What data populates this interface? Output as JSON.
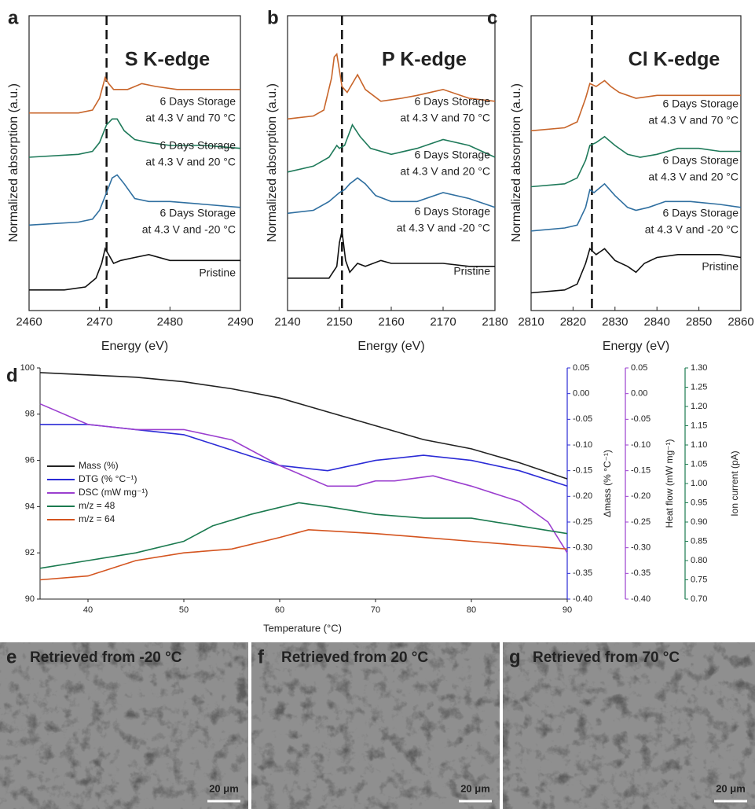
{
  "chart_data": [
    {
      "type": "xanes",
      "panel": "a",
      "title": "S K-edge",
      "xlabel": "Energy (eV)",
      "ylabel": "Normalized absorption (a.u.)",
      "xlim": [
        2460,
        2490
      ],
      "xticks": [
        2460,
        2470,
        2480,
        2490
      ],
      "ylim": [
        0,
        1
      ],
      "vline": 2471,
      "series": [
        {
          "label": [
            "6 Days Storage",
            "at 4.3 V and 70 °C"
          ],
          "color": "#c8652a",
          "x": [
            2460,
            2467,
            2469,
            2470,
            2470.8,
            2471.3,
            2472,
            2474,
            2476,
            2478,
            2481,
            2485,
            2490
          ],
          "values": [
            0.67,
            0.67,
            0.68,
            0.72,
            0.79,
            0.77,
            0.75,
            0.75,
            0.77,
            0.76,
            0.75,
            0.75,
            0.75
          ]
        },
        {
          "label": [
            "6 Days Storage",
            "at 4.3 V and 20 °C"
          ],
          "color": "#1f7a5a",
          "x": [
            2460,
            2467,
            2469,
            2470,
            2471,
            2471.8,
            2472.5,
            2473.5,
            2475,
            2477,
            2480,
            2485,
            2490
          ],
          "values": [
            0.52,
            0.53,
            0.54,
            0.57,
            0.63,
            0.65,
            0.65,
            0.61,
            0.58,
            0.57,
            0.56,
            0.56,
            0.55
          ]
        },
        {
          "label": [
            "6 Days Storage",
            "at 4.3 V and -20 °C"
          ],
          "color": "#2f6fa0",
          "x": [
            2460,
            2467,
            2469,
            2470,
            2471,
            2471.8,
            2472.5,
            2473.5,
            2475,
            2477,
            2480,
            2485,
            2490
          ],
          "values": [
            0.29,
            0.3,
            0.31,
            0.34,
            0.4,
            0.45,
            0.46,
            0.43,
            0.38,
            0.37,
            0.37,
            0.36,
            0.35
          ]
        },
        {
          "label": [
            "Pristine"
          ],
          "color": "#111111",
          "x": [
            2460,
            2465,
            2468,
            2469.5,
            2470.3,
            2470.8,
            2471.3,
            2472,
            2473,
            2475,
            2477,
            2480,
            2483,
            2486,
            2490
          ],
          "values": [
            0.07,
            0.07,
            0.08,
            0.11,
            0.16,
            0.21,
            0.19,
            0.16,
            0.17,
            0.18,
            0.19,
            0.17,
            0.17,
            0.17,
            0.17
          ]
        }
      ]
    },
    {
      "type": "xanes",
      "panel": "b",
      "title": "P K-edge",
      "xlabel": "Energy (eV)",
      "ylabel": "Normalized absorption (a.u.)",
      "xlim": [
        2140,
        2180
      ],
      "xticks": [
        2140,
        2150,
        2160,
        2170,
        2180
      ],
      "ylim": [
        0,
        1
      ],
      "vline": 2150.5,
      "series": [
        {
          "label": [
            "6 Days Storage",
            "at 4.3 V and 70 °C"
          ],
          "color": "#c8652a",
          "x": [
            2140,
            2145,
            2147,
            2148.5,
            2149,
            2149.5,
            2150.5,
            2151.5,
            2153.5,
            2155,
            2158,
            2162,
            2165,
            2170,
            2175,
            2180
          ],
          "values": [
            0.65,
            0.66,
            0.68,
            0.79,
            0.86,
            0.87,
            0.76,
            0.74,
            0.8,
            0.75,
            0.71,
            0.72,
            0.73,
            0.75,
            0.72,
            0.71
          ]
        },
        {
          "label": [
            "6 Days Storage",
            "at 4.3 V and 20 °C"
          ],
          "color": "#1f7a5a",
          "x": [
            2140,
            2145,
            2148,
            2149.5,
            2150,
            2151,
            2152.5,
            2154,
            2156,
            2160,
            2165,
            2170,
            2175,
            2180
          ],
          "values": [
            0.47,
            0.49,
            0.52,
            0.56,
            0.55,
            0.56,
            0.63,
            0.59,
            0.55,
            0.53,
            0.55,
            0.58,
            0.56,
            0.52
          ]
        },
        {
          "label": [
            "6 Days Storage",
            "at 4.3 V and -20 °C"
          ],
          "color": "#2f6fa0",
          "x": [
            2140,
            2145,
            2148,
            2150,
            2151,
            2152,
            2153.5,
            2155,
            2157,
            2160,
            2165,
            2170,
            2175,
            2180
          ],
          "values": [
            0.33,
            0.34,
            0.37,
            0.4,
            0.41,
            0.43,
            0.45,
            0.43,
            0.39,
            0.37,
            0.37,
            0.4,
            0.38,
            0.35
          ]
        },
        {
          "label": [
            "Pristine"
          ],
          "color": "#111111",
          "x": [
            2140,
            2145,
            2148,
            2149.5,
            2150,
            2150.5,
            2151.2,
            2152,
            2153.5,
            2155,
            2158,
            2160,
            2165,
            2170,
            2175,
            2180
          ],
          "values": [
            0.11,
            0.11,
            0.11,
            0.15,
            0.23,
            0.27,
            0.17,
            0.13,
            0.16,
            0.15,
            0.17,
            0.16,
            0.16,
            0.16,
            0.15,
            0.15
          ]
        }
      ]
    },
    {
      "type": "xanes",
      "panel": "c",
      "title": "Cl K-edge",
      "xlabel": "Energy (eV)",
      "ylabel": "Normalized absorption (a.u.)",
      "xlim": [
        2810,
        2860
      ],
      "xticks": [
        2810,
        2820,
        2830,
        2840,
        2850,
        2860
      ],
      "ylim": [
        0,
        1
      ],
      "vline": 2824.5,
      "series": [
        {
          "label": [
            "6 Days Storage",
            "at 4.3 V and 70 °C"
          ],
          "color": "#c8652a",
          "x": [
            2810,
            2818,
            2821,
            2823,
            2824,
            2825.5,
            2827.5,
            2829,
            2831,
            2835,
            2840,
            2845,
            2850,
            2855,
            2860
          ],
          "values": [
            0.61,
            0.62,
            0.64,
            0.72,
            0.77,
            0.76,
            0.78,
            0.76,
            0.74,
            0.72,
            0.73,
            0.73,
            0.73,
            0.73,
            0.73
          ]
        },
        {
          "label": [
            "6 Days Storage",
            "at 4.3 V and 20 °C"
          ],
          "color": "#1f7a5a",
          "x": [
            2810,
            2818,
            2821,
            2823,
            2824,
            2825.5,
            2827.5,
            2830,
            2833,
            2836,
            2840,
            2845,
            2850,
            2855,
            2860
          ],
          "values": [
            0.42,
            0.43,
            0.45,
            0.51,
            0.56,
            0.57,
            0.59,
            0.56,
            0.53,
            0.52,
            0.53,
            0.55,
            0.55,
            0.54,
            0.54
          ]
        },
        {
          "label": [
            "6 Days Storage",
            "at 4.3 V and -20 °C"
          ],
          "color": "#2f6fa0",
          "x": [
            2810,
            2818,
            2821,
            2823,
            2824,
            2825,
            2827.5,
            2830,
            2833,
            2835,
            2838,
            2842,
            2848,
            2855,
            2860
          ],
          "values": [
            0.27,
            0.28,
            0.29,
            0.35,
            0.41,
            0.4,
            0.43,
            0.39,
            0.35,
            0.34,
            0.35,
            0.37,
            0.37,
            0.36,
            0.35
          ]
        },
        {
          "label": [
            "Pristine"
          ],
          "color": "#111111",
          "x": [
            2810,
            2818,
            2821,
            2823,
            2824,
            2825.5,
            2827.5,
            2830,
            2833,
            2835,
            2837,
            2840,
            2845,
            2850,
            2855,
            2860
          ],
          "values": [
            0.06,
            0.07,
            0.09,
            0.16,
            0.21,
            0.19,
            0.21,
            0.17,
            0.15,
            0.13,
            0.16,
            0.18,
            0.19,
            0.19,
            0.19,
            0.18
          ]
        }
      ]
    },
    {
      "type": "thermal",
      "panel": "d",
      "xlabel": "Temperature (°C)",
      "xlim": [
        35,
        90
      ],
      "xticks": [
        40,
        50,
        60,
        70,
        80,
        90
      ],
      "ylim": [
        90,
        100
      ],
      "yticks": [
        90,
        92,
        94,
        96,
        98,
        100
      ],
      "axes": [
        {
          "title": "Δmass (% °C⁻¹)",
          "color": "#2b2bd6",
          "ylim": [
            -0.4,
            0.05
          ],
          "yticks": [
            0.05,
            {
              "value": 0,
              "label": "0.00"
            },
            -0.05,
            {
              "value": -0.1,
              "label": "-0.10"
            },
            -0.15,
            {
              "value": -0.2,
              "label": "-0.20"
            },
            -0.25,
            {
              "value": -0.3,
              "label": "-0.30"
            },
            -0.35,
            {
              "value": -0.4,
              "label": "-0.40"
            }
          ]
        },
        {
          "title": "Heat flow (mW mg⁻¹)",
          "color": "#9b3fcf",
          "ylim": [
            -0.4,
            0.05
          ],
          "yticks": [
            0.05,
            {
              "value": 0,
              "label": "0.00"
            },
            -0.05,
            {
              "value": -0.1,
              "label": "-0.10"
            },
            -0.15,
            {
              "value": -0.2,
              "label": "-0.20"
            },
            -0.25,
            {
              "value": -0.3,
              "label": "-0.30"
            },
            -0.35,
            {
              "value": -0.4,
              "label": "-0.40"
            }
          ]
        },
        {
          "title": "Ion current (pA)",
          "color": "#1b7a4f",
          "ylim": [
            0.7,
            1.3
          ],
          "yticks": [
            {
              "value": 1.3,
              "label": "1.30"
            },
            1.25,
            {
              "value": 1.2,
              "label": "1.20"
            },
            1.15,
            {
              "value": 1.1,
              "label": "1.10"
            },
            1.05,
            {
              "value": 1,
              "label": "1.00"
            },
            0.95,
            {
              "value": 0.9,
              "label": "0.90"
            },
            0.85,
            {
              "value": 0.8,
              "label": "0.80"
            },
            0.75,
            {
              "value": 0.7,
              "label": "0.70"
            }
          ]
        }
      ],
      "series": [
        {
          "name": "Mass (%)",
          "color": "#222222",
          "x": [
            35,
            40,
            45,
            50,
            55,
            60,
            65,
            70,
            75,
            80,
            85,
            90
          ],
          "values": [
            99.8,
            99.7,
            99.6,
            99.4,
            99.1,
            98.7,
            98.1,
            97.5,
            96.9,
            96.5,
            95.9,
            95.2
          ]
        },
        {
          "name": "DTG (% °C⁻¹)",
          "color": "#2b2bd6",
          "axis": 0,
          "x": [
            35,
            40,
            45,
            50,
            55,
            60,
            65,
            70,
            75,
            80,
            85,
            90
          ],
          "values": [
            -0.06,
            -0.06,
            -0.07,
            -0.08,
            -0.11,
            -0.14,
            -0.15,
            -0.13,
            -0.12,
            -0.13,
            -0.15,
            -0.18
          ]
        },
        {
          "name": "DSC (mW mg⁻¹)",
          "color": "#9b3fcf",
          "axis": 1,
          "x": [
            35,
            40,
            45,
            50,
            55,
            60,
            65,
            68,
            70,
            72,
            76,
            80,
            85,
            88,
            90
          ],
          "values": [
            -0.02,
            -0.06,
            -0.07,
            -0.07,
            -0.09,
            -0.14,
            -0.18,
            -0.18,
            -0.17,
            -0.17,
            -0.16,
            -0.18,
            -0.21,
            -0.25,
            -0.31
          ]
        },
        {
          "name": "m/z = 48",
          "color": "#1b7a4f",
          "axis": 2,
          "x": [
            35,
            40,
            45,
            50,
            53,
            57,
            62,
            65,
            70,
            75,
            80,
            85,
            90
          ],
          "values": [
            0.78,
            0.8,
            0.82,
            0.85,
            0.89,
            0.92,
            0.95,
            0.94,
            0.92,
            0.91,
            0.91,
            0.89,
            0.87
          ]
        },
        {
          "name": "m/z = 64",
          "color": "#d4541f",
          "axis": 2,
          "x": [
            35,
            40,
            45,
            50,
            55,
            60,
            63,
            70,
            75,
            80,
            85,
            90
          ],
          "values": [
            0.75,
            0.76,
            0.8,
            0.82,
            0.83,
            0.86,
            0.88,
            0.87,
            0.86,
            0.85,
            0.84,
            0.83
          ]
        }
      ]
    }
  ],
  "images": [
    {
      "panel": "e",
      "caption": "Retrieved from -20 °C",
      "scale": "20 μm"
    },
    {
      "panel": "f",
      "caption": "Retrieved from 20 °C",
      "scale": "20 μm"
    },
    {
      "panel": "g",
      "caption": "Retrieved from 70 °C",
      "scale": "20 μm"
    }
  ]
}
